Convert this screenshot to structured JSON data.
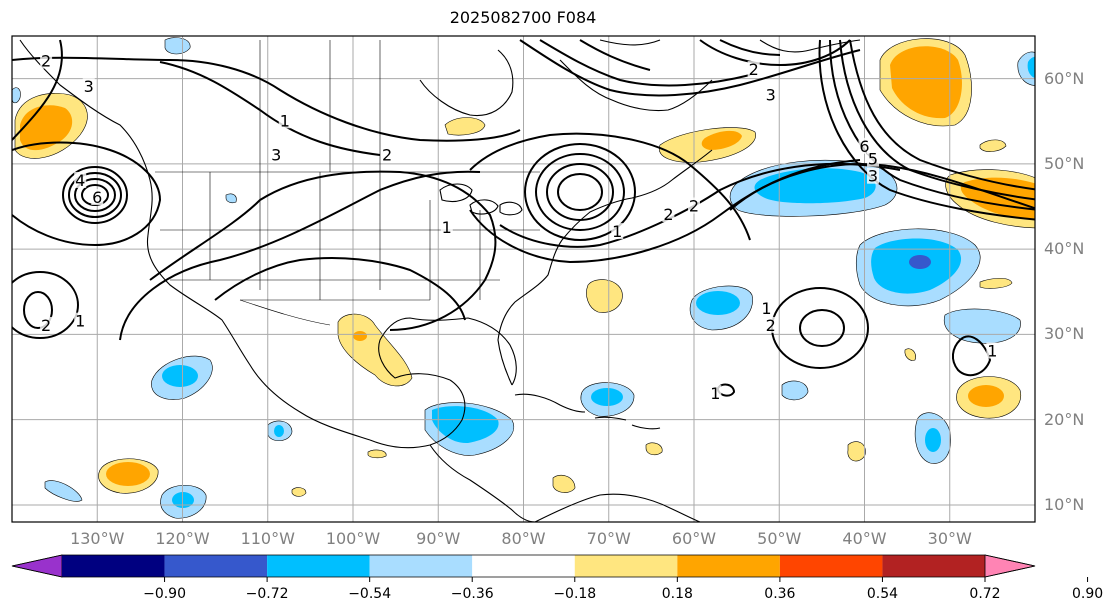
{
  "title": "2025082700 F084",
  "map": {
    "lon_range": [
      -140,
      -20
    ],
    "lat_range": [
      8,
      65
    ],
    "lat_ticks": [
      {
        "value": 60,
        "label": "60°N"
      },
      {
        "value": 50,
        "label": "50°N"
      },
      {
        "value": 40,
        "label": "40°N"
      },
      {
        "value": 30,
        "label": "30°N"
      },
      {
        "value": 20,
        "label": "20°N"
      },
      {
        "value": 10,
        "label": "10°N"
      }
    ],
    "lon_ticks": [
      {
        "value": -130,
        "label": "130°W"
      },
      {
        "value": -120,
        "label": "120°W"
      },
      {
        "value": -110,
        "label": "110°W"
      },
      {
        "value": -100,
        "label": "100°W"
      },
      {
        "value": -90,
        "label": "90°W"
      },
      {
        "value": -80,
        "label": "80°W"
      },
      {
        "value": -70,
        "label": "70°W"
      },
      {
        "value": -60,
        "label": "60°W"
      },
      {
        "value": -50,
        "label": "50°W"
      },
      {
        "value": -40,
        "label": "40°W"
      },
      {
        "value": -30,
        "label": "30°W"
      }
    ],
    "grid": true,
    "colors": {
      "land_line": "#000000",
      "grid": "#aaaaaa",
      "contour": "#000000"
    }
  },
  "contour_labels": [
    {
      "text": "1",
      "lon": -108,
      "lat": 55
    },
    {
      "text": "3",
      "lon": -109,
      "lat": 51
    },
    {
      "text": "2",
      "lon": -96,
      "lat": 51
    },
    {
      "text": "1",
      "lon": -89,
      "lat": 42.5
    },
    {
      "text": "6",
      "lon": -130,
      "lat": 46
    },
    {
      "text": "4",
      "lon": -132,
      "lat": 48
    },
    {
      "text": "2",
      "lon": -136,
      "lat": 62
    },
    {
      "text": "3",
      "lon": -131,
      "lat": 59
    },
    {
      "text": "2",
      "lon": -136,
      "lat": 31
    },
    {
      "text": "1",
      "lon": -132,
      "lat": 31.5
    },
    {
      "text": "2",
      "lon": -53,
      "lat": 61
    },
    {
      "text": "3",
      "lon": -51,
      "lat": 58
    },
    {
      "text": "6",
      "lon": -40,
      "lat": 52
    },
    {
      "text": "5",
      "lon": -39,
      "lat": 50.5
    },
    {
      "text": "3",
      "lon": -39,
      "lat": 48.5
    },
    {
      "text": "2",
      "lon": -63,
      "lat": 44
    },
    {
      "text": "1",
      "lon": -69,
      "lat": 42
    },
    {
      "text": "2",
      "lon": -60,
      "lat": 45
    },
    {
      "text": "2",
      "lon": -51,
      "lat": 31
    },
    {
      "text": "1",
      "lon": -51.5,
      "lat": 33
    },
    {
      "text": "1",
      "lon": -57.5,
      "lat": 23
    },
    {
      "text": "1",
      "lon": -25,
      "lat": 28
    }
  ],
  "colorbar": {
    "colors": [
      "#9932cc",
      "#000080",
      "#3658cc",
      "#00bfff",
      "#a9ddff",
      "#ffffff",
      "#ffe680",
      "#ffa500",
      "#ff4500",
      "#b22222",
      "#ff84b4"
    ],
    "labels": [
      "−0.90",
      "−0.72",
      "−0.54",
      "−0.36",
      "−0.18",
      "0.18",
      "0.36",
      "0.54",
      "0.72",
      "0.90"
    ]
  }
}
